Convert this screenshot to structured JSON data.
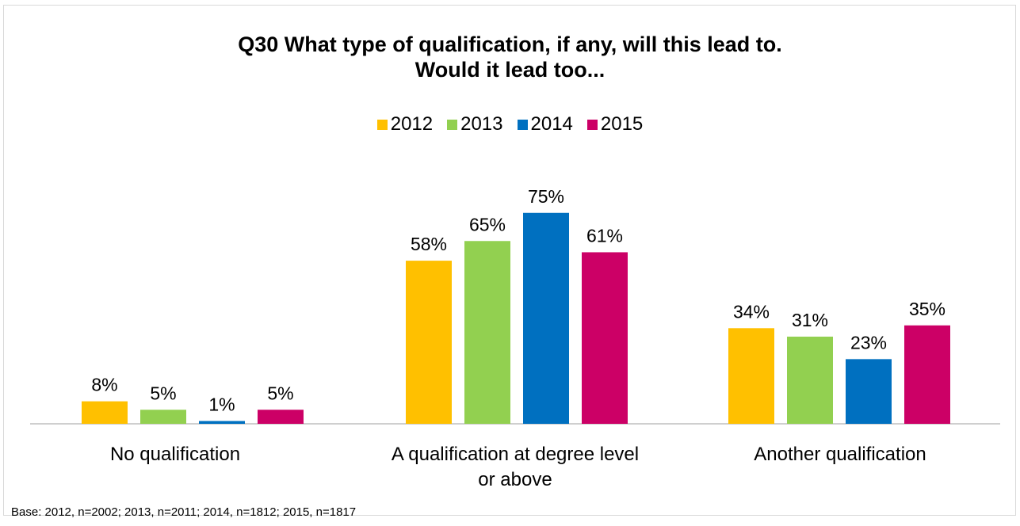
{
  "chart_data": {
    "type": "bar",
    "title": "Q30 What type of qualification, if any, will this lead to. Would it lead too...",
    "title_lines": [
      "Q30 What type of qualification, if any, will this lead to.",
      "Would it lead too..."
    ],
    "categories": [
      "No qualification",
      "A qualification at degree level or above",
      "Another qualification"
    ],
    "category_lines": [
      [
        "No qualification"
      ],
      [
        "A qualification at degree level",
        "or above"
      ],
      [
        "Another qualification"
      ]
    ],
    "series": [
      {
        "name": "2012",
        "color": "#ffc000",
        "values": [
          8,
          58,
          34
        ]
      },
      {
        "name": "2013",
        "color": "#92d050",
        "values": [
          5,
          65,
          31
        ]
      },
      {
        "name": "2014",
        "color": "#0070c0",
        "values": [
          1,
          75,
          23
        ]
      },
      {
        "name": "2015",
        "color": "#cc0066",
        "values": [
          5,
          61,
          35
        ]
      }
    ],
    "value_suffix": "%",
    "ylim": [
      0,
      100
    ],
    "legend_position": "top",
    "grid": false,
    "xlabel": "",
    "ylabel": ""
  },
  "footnote": "Base: 2012, n=2002; 2013, n=2011; 2014, n=1812; 2015, n=1817"
}
